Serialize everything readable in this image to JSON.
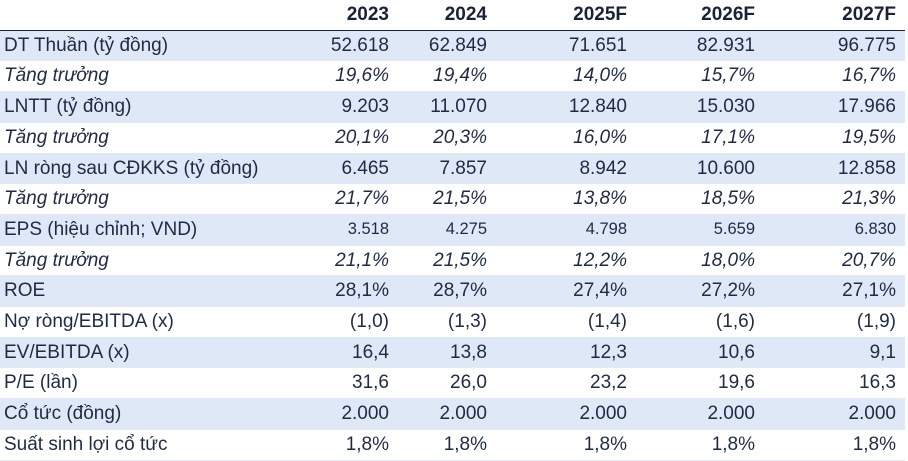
{
  "header": {
    "label": "",
    "years": [
      "2023",
      "2024",
      "2025F",
      "2026F",
      "2027F"
    ]
  },
  "rows": [
    {
      "label": "DT Thuần (tỷ đồng)",
      "values": [
        "52.618",
        "62.849",
        "71.651",
        "82.931",
        "96.775"
      ]
    },
    {
      "label": "Tăng trưởng",
      "values": [
        "19,6%",
        "19,4%",
        "14,0%",
        "15,7%",
        "16,7%"
      ]
    },
    {
      "label": "LNTT (tỷ đồng)",
      "values": [
        "9.203",
        "11.070",
        "12.840",
        "15.030",
        "17.966"
      ]
    },
    {
      "label": "Tăng trưởng",
      "values": [
        "20,1%",
        "20,3%",
        "16,0%",
        "17,1%",
        "19,5%"
      ]
    },
    {
      "label": "LN ròng sau CĐKKS (tỷ đồng)",
      "values": [
        "6.465",
        "7.857",
        "8.942",
        "10.600",
        "12.858"
      ]
    },
    {
      "label": "Tăng trưởng",
      "values": [
        "21,7%",
        "21,5%",
        "13,8%",
        "18,5%",
        "21,3%"
      ]
    },
    {
      "label": "EPS (hiệu chỉnh; VND)",
      "values": [
        "3.518",
        "4.275",
        "4.798",
        "5.659",
        "6.830"
      ]
    },
    {
      "label": "Tăng trưởng",
      "values": [
        "21,1%",
        "21,5%",
        "12,2%",
        "18,0%",
        "20,7%"
      ]
    },
    {
      "label": "ROE",
      "values": [
        "28,1%",
        "28,7%",
        "27,4%",
        "27,2%",
        "27,1%"
      ]
    },
    {
      "label": "Nợ ròng/EBITDA (x)",
      "values": [
        "(1,0)",
        "(1,3)",
        "(1,4)",
        "(1,6)",
        "(1,9)"
      ]
    },
    {
      "label": "EV/EBITDA (x)",
      "values": [
        "16,4",
        "13,8",
        "12,3",
        "10,6",
        "9,1"
      ]
    },
    {
      "label": "P/E (lần)",
      "values": [
        "31,6",
        "26,0",
        "23,2",
        "19,6",
        "16,3"
      ]
    },
    {
      "label": "Cổ tức (đồng)",
      "values": [
        "2.000",
        "2.000",
        "2.000",
        "2.000",
        "2.000"
      ]
    },
    {
      "label": "Suất sinh lợi cổ tức",
      "values": [
        "1,8%",
        "1,8%",
        "1,8%",
        "1,8%",
        "1,8%"
      ]
    }
  ]
}
